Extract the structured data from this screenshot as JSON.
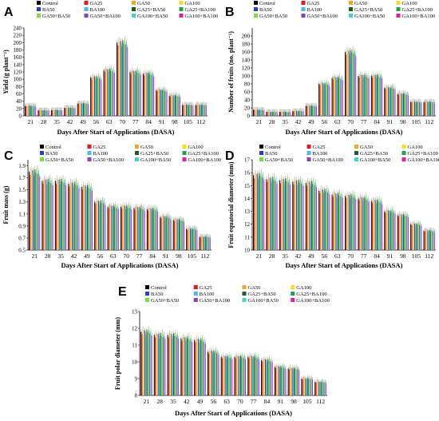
{
  "legend_series": [
    {
      "name": "Control",
      "color": "#000000"
    },
    {
      "name": "GA25",
      "color": "#e8141e"
    },
    {
      "name": "GA50",
      "color": "#f5a623"
    },
    {
      "name": "GA100",
      "color": "#f0e21e"
    },
    {
      "name": "BA50",
      "color": "#1f3fd6"
    },
    {
      "name": "BA100",
      "color": "#4fb8e8"
    },
    {
      "name": "GA25+BA50",
      "color": "#1f5a2a"
    },
    {
      "name": "GA25+BA100",
      "color": "#21a24a"
    },
    {
      "name": "GA50+BA50",
      "color": "#73e03a"
    },
    {
      "name": "GA50+BA100",
      "color": "#8a3fbf"
    },
    {
      "name": "GA100+BA50",
      "color": "#3fd6c8"
    },
    {
      "name": "GA100+BA100",
      "color": "#e01ea8"
    }
  ],
  "chart_data": [
    {
      "panel": "A",
      "type": "bar",
      "ylabel": "Yield (g plant⁻¹)",
      "xlabel": "Days After Start of Applications (DASA)",
      "categories": [
        "21",
        "28",
        "35",
        "42",
        "49",
        "56",
        "63",
        "70",
        "77",
        "84",
        "91",
        "98",
        "105",
        "112"
      ],
      "ylim": [
        0,
        240
      ],
      "yticks": [
        0,
        20,
        40,
        60,
        80,
        100,
        120,
        140,
        160,
        180,
        200,
        220,
        240
      ],
      "ytick_labels": [
        "0",
        "20",
        "40",
        "60",
        "80",
        "100",
        "120",
        "140",
        "160",
        "180",
        "200",
        "220",
        "240"
      ],
      "values": [
        27,
        15,
        16,
        22,
        34,
        105,
        125,
        200,
        120,
        115,
        70,
        55,
        30,
        30
      ]
    },
    {
      "panel": "B",
      "type": "bar",
      "ylabel": "Number of fruits (no. plant⁻¹)",
      "xlabel": "Days After Start of Applications (DASA)",
      "categories": [
        "21",
        "28",
        "35",
        "42",
        "49",
        "56",
        "63",
        "70",
        "77",
        "84",
        "91",
        "98",
        "105",
        "112"
      ],
      "ylim": [
        0,
        220
      ],
      "yticks": [
        0,
        20,
        40,
        60,
        80,
        100,
        120,
        140,
        160,
        180,
        200
      ],
      "ytick_labels": [
        "0",
        "20",
        "40",
        "60",
        "80",
        "100",
        "120",
        "140",
        "160",
        "180",
        "200"
      ],
      "values": [
        15,
        10,
        10,
        12,
        25,
        80,
        95,
        160,
        100,
        100,
        70,
        55,
        35,
        35
      ]
    },
    {
      "panel": "C",
      "type": "bar",
      "ylabel": "Fruit mass (g)",
      "xlabel": "Days After Start of Applications (DASA)",
      "categories": [
        "21",
        "28",
        "35",
        "42",
        "49",
        "56",
        "63",
        "70",
        "77",
        "84",
        "91",
        "98",
        "105",
        "112"
      ],
      "ylim": [
        0.5,
        2.0
      ],
      "yticks": [
        0.5,
        0.7,
        0.9,
        1.1,
        1.3,
        1.5,
        1.7,
        1.9
      ],
      "ytick_labels": [
        "0.5",
        "0.7",
        "0.9",
        "1.1",
        "1.3",
        "1.5",
        "1.7",
        "1.9"
      ],
      "values": [
        1.8,
        1.65,
        1.65,
        1.6,
        1.55,
        1.3,
        1.22,
        1.22,
        1.2,
        1.18,
        1.05,
        1.0,
        0.85,
        0.72
      ]
    },
    {
      "panel": "D",
      "type": "bar",
      "ylabel": "Fruit equatorial diameter (mm)",
      "xlabel": "Days After Start of Applications (DASA)",
      "categories": [
        "21",
        "28",
        "35",
        "42",
        "49",
        "56",
        "63",
        "70",
        "77",
        "84",
        "91",
        "98",
        "105",
        "112"
      ],
      "ylim": [
        10,
        17
      ],
      "yticks": [
        10,
        11,
        12,
        13,
        14,
        15,
        16,
        17
      ],
      "ytick_labels": [
        "10",
        "11",
        "12",
        "13",
        "14",
        "15",
        "16",
        "17"
      ],
      "values": [
        15.8,
        15.5,
        15.4,
        15.3,
        15.2,
        14.6,
        14.3,
        14.2,
        14.0,
        13.8,
        13.0,
        12.7,
        12.0,
        11.5
      ]
    },
    {
      "panel": "E",
      "type": "bar",
      "ylabel": "Fruit polar diameter (mm)",
      "xlabel": "Days After Start of Applications (DASA)",
      "categories": [
        "21",
        "28",
        "35",
        "42",
        "49",
        "56",
        "63",
        "70",
        "77",
        "84",
        "91",
        "98",
        "105",
        "112"
      ],
      "ylim": [
        8,
        13
      ],
      "yticks": [
        8,
        9,
        10,
        11,
        12,
        13
      ],
      "ytick_labels": [
        "8",
        "9",
        "10",
        "11",
        "12",
        "13"
      ],
      "values": [
        11.8,
        11.6,
        11.6,
        11.4,
        11.3,
        10.6,
        10.3,
        10.3,
        10.3,
        10.1,
        9.7,
        9.6,
        9.0,
        8.8
      ]
    }
  ]
}
